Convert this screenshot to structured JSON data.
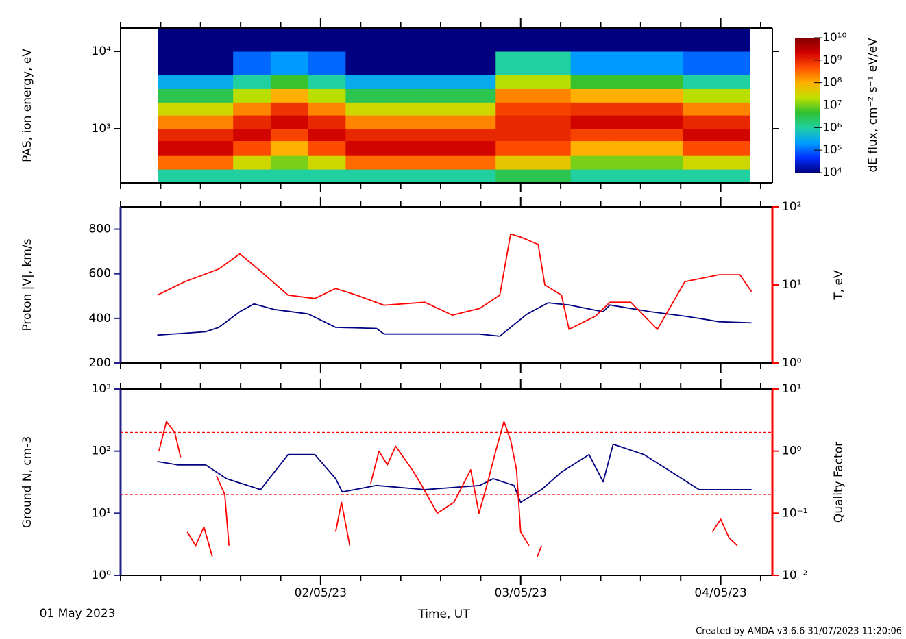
{
  "chart_data": [
    {
      "type": "heatmap",
      "ylabel": "PAS, ion energy, eV",
      "ylog": true,
      "ylim": [
        200,
        20000
      ],
      "yticks": [
        {
          "value": 1000,
          "label": "10³"
        },
        {
          "value": 10000,
          "label": "10⁴"
        }
      ],
      "xbins": [
        4.5,
        9,
        13.5,
        18,
        22.5,
        27,
        31.5,
        36,
        40.5,
        45,
        49.5,
        54,
        58.5,
        63,
        67.5,
        72,
        75.5
      ],
      "ybins": [
        200,
        300,
        450,
        700,
        1000,
        1500,
        2200,
        3300,
        5000,
        10000,
        20000
      ],
      "z": [
        [
          1000000.0,
          300000000.0,
          2000000000.0,
          1000000000.0,
          200000000.0,
          30000000.0,
          3000000.0,
          300000.0,
          10000.0,
          10000.0
        ],
        [
          1000000.0,
          300000000.0,
          2000000000.0,
          1000000000.0,
          200000000.0,
          30000000.0,
          3000000.0,
          300000.0,
          10000.0,
          10000.0
        ],
        [
          1000000.0,
          30000000.0,
          500000000.0,
          2000000000.0,
          1000000000.0,
          200000000.0,
          20000000.0,
          1000000.0,
          100000.0,
          10000.0
        ],
        [
          1000000.0,
          10000000.0,
          100000000.0,
          600000000.0,
          2000000000.0,
          800000000.0,
          100000000.0,
          5000000.0,
          200000.0,
          10000.0
        ],
        [
          1000000.0,
          30000000.0,
          500000000.0,
          2000000000.0,
          1000000000.0,
          200000000.0,
          20000000.0,
          1000000.0,
          100000.0,
          10000.0
        ],
        [
          1000000.0,
          300000000.0,
          2000000000.0,
          1000000000.0,
          200000000.0,
          30000000.0,
          3000000.0,
          300000.0,
          10000.0,
          10000.0
        ],
        [
          1000000.0,
          300000000.0,
          2000000000.0,
          1000000000.0,
          200000000.0,
          30000000.0,
          3000000.0,
          300000.0,
          10000.0,
          10000.0
        ],
        [
          1000000.0,
          300000000.0,
          2000000000.0,
          1000000000.0,
          200000000.0,
          30000000.0,
          3000000.0,
          300000.0,
          10000.0,
          10000.0
        ],
        [
          1000000.0,
          300000000.0,
          2000000000.0,
          1000000000.0,
          200000000.0,
          30000000.0,
          3000000.0,
          300000.0,
          10000.0,
          10000.0
        ],
        [
          3000000.0,
          50000000.0,
          500000000.0,
          1000000000.0,
          1000000000.0,
          600000000.0,
          200000000.0,
          20000000.0,
          1000000.0,
          10000.0
        ],
        [
          3000000.0,
          50000000.0,
          500000000.0,
          1000000000.0,
          1000000000.0,
          600000000.0,
          200000000.0,
          20000000.0,
          1000000.0,
          10000.0
        ],
        [
          1000000.0,
          10000000.0,
          100000000.0,
          600000000.0,
          2000000000.0,
          800000000.0,
          100000000.0,
          5000000.0,
          200000.0,
          10000.0
        ],
        [
          1000000.0,
          10000000.0,
          100000000.0,
          600000000.0,
          2000000000.0,
          800000000.0,
          100000000.0,
          5000000.0,
          200000.0,
          10000.0
        ],
        [
          1000000.0,
          10000000.0,
          100000000.0,
          600000000.0,
          2000000000.0,
          800000000.0,
          100000000.0,
          5000000.0,
          200000.0,
          10000.0
        ],
        [
          1000000.0,
          30000000.0,
          500000000.0,
          2000000000.0,
          1000000000.0,
          200000000.0,
          20000000.0,
          1000000.0,
          100000.0,
          10000.0
        ],
        [
          1000000.0,
          30000000.0,
          500000000.0,
          2000000000.0,
          1000000000.0,
          200000000.0,
          20000000.0,
          1000000.0,
          100000.0,
          10000.0
        ]
      ],
      "colormap": [
        "#000080",
        "#0030ff",
        "#00a0ff",
        "#20d0a0",
        "#30c030",
        "#c0e000",
        "#ffb000",
        "#ff5000",
        "#d00000",
        "#800000"
      ],
      "clim": [
        10000.0,
        10000000000.0
      ],
      "cticks": [
        {
          "value": 10000.0,
          "label": "10⁴"
        },
        {
          "value": 100000.0,
          "label": "10⁵"
        },
        {
          "value": 1000000.0,
          "label": "10⁶"
        },
        {
          "value": 10000000.0,
          "label": "10⁷"
        },
        {
          "value": 100000000.0,
          "label": "10⁸"
        },
        {
          "value": 1000000000.0,
          "label": "10⁹"
        },
        {
          "value": 10000000000.0,
          "label": "10¹⁰"
        }
      ],
      "clabel": "dE flux, cm⁻² s⁻¹ eV/eV"
    },
    {
      "type": "line",
      "ylabel": "Proton |V|, km/s",
      "ycolor": "#22228a",
      "y2label": "T, eV",
      "y2color": "#ff0000",
      "y2log": true,
      "ylim": [
        200,
        900
      ],
      "yticks": [
        200,
        400,
        600,
        800
      ],
      "y2lim": [
        1,
        100
      ],
      "y2ticks": [
        {
          "value": 1,
          "label": "10⁰"
        },
        {
          "value": 10,
          "label": "10¹"
        },
        {
          "value": 100,
          "label": "10²"
        }
      ],
      "series": [
        {
          "color": "#000080",
          "x": [
            4.4,
            10.2,
            11.8,
            14.3,
            16.0,
            18.4,
            22.5,
            25.8,
            30.7,
            31.6,
            36.5,
            43.0,
            45.5,
            46.8,
            48.8,
            51.3,
            53.8,
            57.9,
            58.7,
            63.6,
            67.7,
            69.4,
            71.8,
            75.7
          ],
          "values": [
            325,
            340,
            360,
            430,
            465,
            440,
            420,
            360,
            355,
            330,
            330,
            330,
            320,
            360,
            420,
            470,
            460,
            430,
            460,
            430,
            410,
            400,
            385,
            380
          ]
        },
        {
          "color": "#ff0000",
          "axis": "y2",
          "x": [
            4.4,
            7.7,
            11.8,
            14.3,
            16.8,
            20.1,
            23.3,
            25.8,
            28.3,
            31.6,
            36.5,
            39.8,
            43.1,
            45.5,
            46.8,
            48.0,
            50.1,
            50.9,
            52.9,
            53.8,
            57.0,
            58.7,
            61.2,
            64.4,
            67.7,
            71.8,
            74.3,
            75.7
          ],
          "values": [
            7.4,
            11,
            16,
            25,
            15,
            7.4,
            6.7,
            9,
            7.4,
            5.5,
            6,
            4.1,
            5,
            7.4,
            45,
            41,
            33,
            10,
            7.4,
            2.7,
            4,
            6,
            6,
            2.7,
            11,
            13.5,
            13.5,
            8.2
          ]
        }
      ]
    },
    {
      "type": "line",
      "ylabel": "Ground N, cm-3",
      "ycolor": "#22228a",
      "y2label": "Quality Factor",
      "y2color": "#ff0000",
      "ylog": true,
      "y2log": true,
      "ylim": [
        1,
        1000
      ],
      "yticks": [
        {
          "value": 1,
          "label": "10⁰"
        },
        {
          "value": 10,
          "label": "10¹"
        },
        {
          "value": 100,
          "label": "10²"
        },
        {
          "value": 1000,
          "label": "10³"
        }
      ],
      "y2lim": [
        0.01,
        10
      ],
      "y2ticks": [
        {
          "value": 0.01,
          "label": "10⁻²"
        },
        {
          "value": 0.1,
          "label": "10⁻¹"
        },
        {
          "value": 1,
          "label": "10⁰"
        },
        {
          "value": 10,
          "label": "10¹"
        }
      ],
      "y2refs": [
        2,
        0.2
      ],
      "series": [
        {
          "color": "#000080",
          "x": [
            4.4,
            6.9,
            10.2,
            12.7,
            16.8,
            20.1,
            23.3,
            25.8,
            26.6,
            30.7,
            36.5,
            43.1,
            44.7,
            47.2,
            48.0,
            50.5,
            52.9,
            56.2,
            57.9,
            59.1,
            62.8,
            66.1,
            69.4,
            75.7
          ],
          "values": [
            68,
            60,
            60,
            36,
            24,
            88,
            88,
            36,
            22,
            28,
            24,
            28,
            36,
            28,
            15,
            24,
            46,
            88,
            32,
            129,
            88,
            46,
            24,
            24
          ]
        },
        {
          "color": "#ff0000",
          "axis": "y2",
          "x": [
            4.6,
            5.5,
            6.5,
            7.2,
            7.6,
            8,
            9,
            10,
            11,
            11.2,
            11.5,
            12.5,
            13,
            13.4,
            25.8,
            26.5,
            27.5,
            28,
            30,
            31,
            32,
            33,
            35,
            36,
            38,
            40,
            42,
            43,
            44,
            45,
            46,
            46.8,
            47.5,
            48,
            49,
            49.5,
            50,
            50.5,
            60,
            71,
            72,
            73,
            74
          ],
          "values": [
            1,
            3,
            2,
            0.8,
            null,
            0.05,
            0.03,
            0.06,
            0.02,
            null,
            0.4,
            0.2,
            0.03,
            null,
            0.05,
            0.15,
            0.03,
            null,
            0.3,
            1,
            0.6,
            1.2,
            0.5,
            0.3,
            0.1,
            0.15,
            0.5,
            0.1,
            0.3,
            1,
            3,
            1.5,
            0.5,
            0.05,
            0.03,
            null,
            0.02,
            0.03,
            null,
            0.05,
            0.08,
            0.04,
            0.03
          ]
        }
      ],
      "xlim": [
        0,
        78.2
      ],
      "xticks": [
        {
          "value": 24,
          "label": "02/05/23"
        },
        {
          "value": 48,
          "label": "03/05/23"
        },
        {
          "value": 72,
          "label": "04/05/23"
        }
      ],
      "xminor": [
        0,
        4.8,
        9.6,
        14.4,
        19.2,
        28.8,
        33.6,
        38.4,
        43.2,
        52.8,
        57.6,
        62.4,
        67.2,
        76.8
      ],
      "xlabel": "Time, UT",
      "start_label": "01 May 2023"
    }
  ],
  "credit": "Created by AMDA v3.6.6 31/07/2023 11:20:06"
}
